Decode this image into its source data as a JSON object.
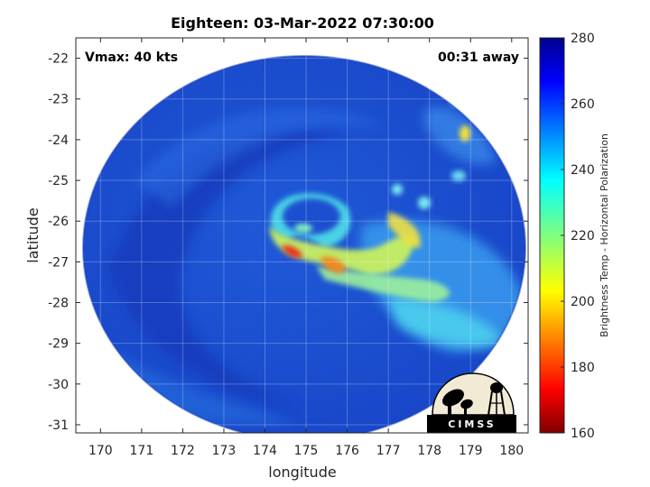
{
  "title": "Eighteen: 03-Mar-2022 07:30:00",
  "vmax_label": "Vmax: 40 kts",
  "time_away_label": "00:31 away",
  "xlabel": "longitude",
  "ylabel": "latitude",
  "colorbar_label": "Brightness Temp - Horizontal Polarization",
  "logo_text": "CIMSS",
  "map": {
    "lon_range": [
      169.4,
      180.4
    ],
    "lat_range": [
      -31.2,
      -21.5
    ],
    "lon_ticks": [
      "170",
      "171",
      "172",
      "173",
      "174",
      "175",
      "176",
      "177",
      "178",
      "179",
      "180"
    ],
    "lat_ticks": [
      "-22",
      "-23",
      "-24",
      "-25",
      "-26",
      "-27",
      "-28",
      "-29",
      "-30",
      "-31"
    ],
    "storm_center": {
      "lon": 175.0,
      "lat": -26.3
    }
  },
  "colorbar": {
    "min": 160,
    "max": 280,
    "ticks": [
      "160",
      "180",
      "200",
      "220",
      "240",
      "260",
      "280"
    ],
    "colormap": "jet"
  }
}
